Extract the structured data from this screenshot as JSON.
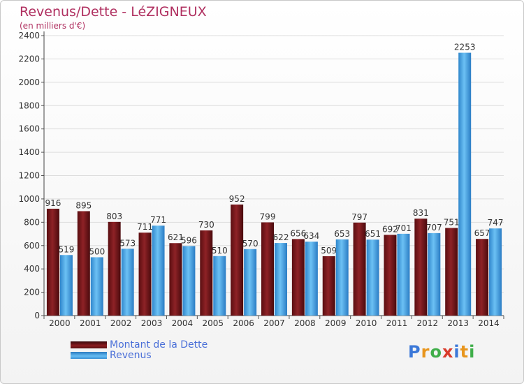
{
  "chart_data": {
    "type": "bar",
    "title": "Revenus/Dette - LéZIGNEUX",
    "subtitle": "(en milliers d'€)",
    "categories": [
      "2000",
      "2001",
      "2002",
      "2003",
      "2004",
      "2005",
      "2006",
      "2007",
      "2008",
      "2009",
      "2010",
      "2011",
      "2012",
      "2013",
      "2014"
    ],
    "series": [
      {
        "name": "Montant de la Dette",
        "color": "#7a1518",
        "values": [
          916,
          895,
          803,
          711,
          621,
          730,
          952,
          799,
          656,
          509,
          797,
          692,
          831,
          751,
          657
        ]
      },
      {
        "name": "Revenus",
        "color": "#4aa8e8",
        "values": [
          519,
          500,
          573,
          771,
          596,
          510,
          570,
          622,
          634,
          653,
          651,
          701,
          707,
          2253,
          747
        ]
      }
    ],
    "ylim": [
      0,
      2400
    ],
    "yticks": [
      0,
      200,
      400,
      600,
      800,
      1000,
      1200,
      1400,
      1600,
      1800,
      2000,
      2200,
      2400
    ],
    "grid": true,
    "legend_position": "bottom-left"
  },
  "logo": {
    "text": "Proxiti",
    "letters": [
      "P",
      "r",
      "o",
      "x",
      "i",
      "t",
      "i"
    ]
  },
  "colors": {
    "title": "#b03060",
    "legend_text": "#4a6fd8",
    "grid": "#dddddd"
  }
}
